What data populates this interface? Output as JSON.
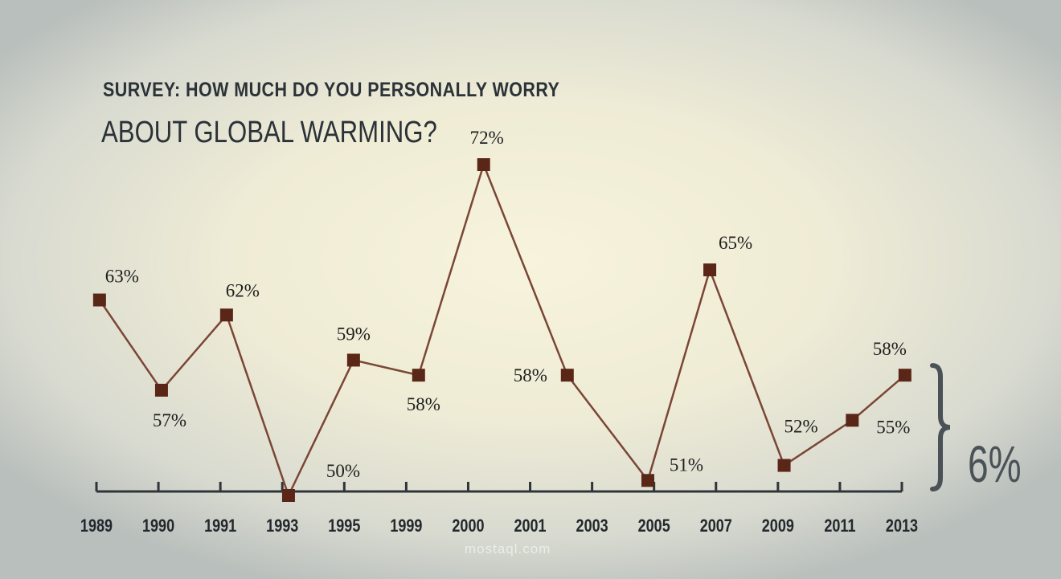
{
  "chart_data": {
    "type": "line",
    "title": "SURVEY: HOW MUCH DO YOU PERSONALLY WORRY",
    "subtitle": "ABOUT GLOBAL WARMING?",
    "categories": [
      "1989",
      "1990",
      "1991",
      "1993",
      "1995",
      "1999",
      "2000",
      "2001",
      "2003",
      "2005",
      "2007",
      "2009",
      "2011",
      "2013"
    ],
    "points": [
      {
        "label": "63%",
        "value": 63,
        "pos": 0.05
      },
      {
        "label": "57%",
        "value": 57,
        "pos": 1.05
      },
      {
        "label": "62%",
        "value": 62,
        "pos": 2.1
      },
      {
        "label": "50%",
        "value": 50,
        "pos": 3.1
      },
      {
        "label": "59%",
        "value": 59,
        "pos": 4.15
      },
      {
        "label": "58%",
        "value": 58,
        "pos": 5.2
      },
      {
        "label": "72%",
        "value": 72,
        "pos": 6.25
      },
      {
        "label": "58%",
        "value": 58,
        "pos": 7.6
      },
      {
        "label": "51%",
        "value": 51,
        "pos": 8.9
      },
      {
        "label": "65%",
        "value": 65,
        "pos": 9.9
      },
      {
        "label": "52%",
        "value": 52,
        "pos": 11.1
      },
      {
        "label": "55%",
        "value": 55,
        "pos": 12.2
      },
      {
        "label": "58%",
        "value": 58,
        "pos": 13.05
      }
    ],
    "ylim": [
      50,
      72
    ],
    "annotation": {
      "text": "6%",
      "from": 50,
      "to": 58
    },
    "colors": {
      "line": "#7a4636",
      "marker": "#5a2618",
      "axis": "#2f353a",
      "text": "#1e1e1e",
      "annotation": "#4a5257"
    }
  },
  "watermark": "mostaql.com"
}
